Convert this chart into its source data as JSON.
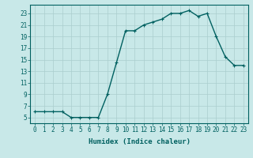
{
  "x": [
    0,
    1,
    2,
    3,
    4,
    5,
    6,
    7,
    8,
    9,
    10,
    11,
    12,
    13,
    14,
    15,
    16,
    17,
    18,
    19,
    20,
    21,
    22,
    23
  ],
  "y": [
    6,
    6,
    6,
    6,
    5,
    5,
    5,
    5,
    9,
    14.5,
    20,
    20,
    21,
    21.5,
    22,
    23,
    23,
    23.5,
    22.5,
    23,
    19,
    15.5,
    14,
    14
  ],
  "line_color": "#006060",
  "marker": "+",
  "marker_size": 3,
  "bg_color": "#c8e8e8",
  "grid_color": "#aacece",
  "xlabel": "Humidex (Indice chaleur)",
  "xlim": [
    -0.5,
    23.5
  ],
  "ylim": [
    4,
    24.5
  ],
  "yticks": [
    5,
    7,
    9,
    11,
    13,
    15,
    17,
    19,
    21,
    23
  ],
  "xticks": [
    0,
    1,
    2,
    3,
    4,
    5,
    6,
    7,
    8,
    9,
    10,
    11,
    12,
    13,
    14,
    15,
    16,
    17,
    18,
    19,
    20,
    21,
    22,
    23
  ],
  "tick_fontsize": 5.5,
  "xlabel_fontsize": 6.5,
  "linewidth": 1.0
}
